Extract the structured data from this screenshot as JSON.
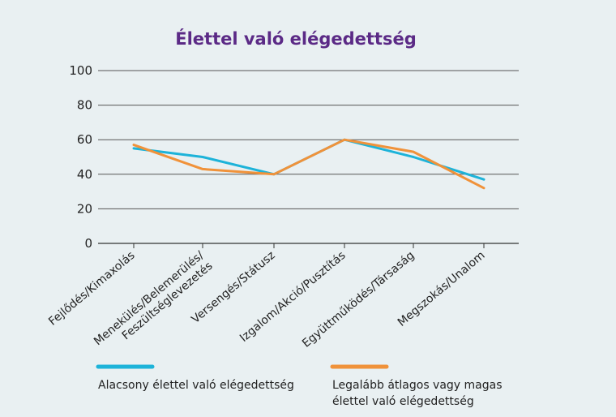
{
  "chart_data": {
    "type": "line",
    "title": "Élettel való elégedettség",
    "xlabel": "",
    "ylabel": "",
    "categories": [
      [
        "Fejlődés/Kimaxolás"
      ],
      [
        "Menekülés/Belemerülés/",
        "Feszültséglevezetés"
      ],
      [
        "Versengés/Státusz"
      ],
      [
        "Izgalom/Akció/Pusztítás"
      ],
      [
        "Együttműködés/Társaság"
      ],
      [
        "Megszokás/Unalom"
      ]
    ],
    "ylim": [
      0,
      100
    ],
    "yticks": [
      0,
      20,
      40,
      60,
      80,
      100
    ],
    "grid": true,
    "legend_position": "bottom",
    "series": [
      {
        "name": [
          "Alacsony élettel való elégedettség"
        ],
        "color": "#1db3d9",
        "values": [
          55,
          50,
          40,
          60,
          50,
          37
        ]
      },
      {
        "name": [
          "Legalább átlagos vagy magas",
          "élettel való elégedettség"
        ],
        "color": "#f0923a",
        "values": [
          57,
          43,
          40,
          60,
          53,
          32
        ]
      }
    ]
  }
}
